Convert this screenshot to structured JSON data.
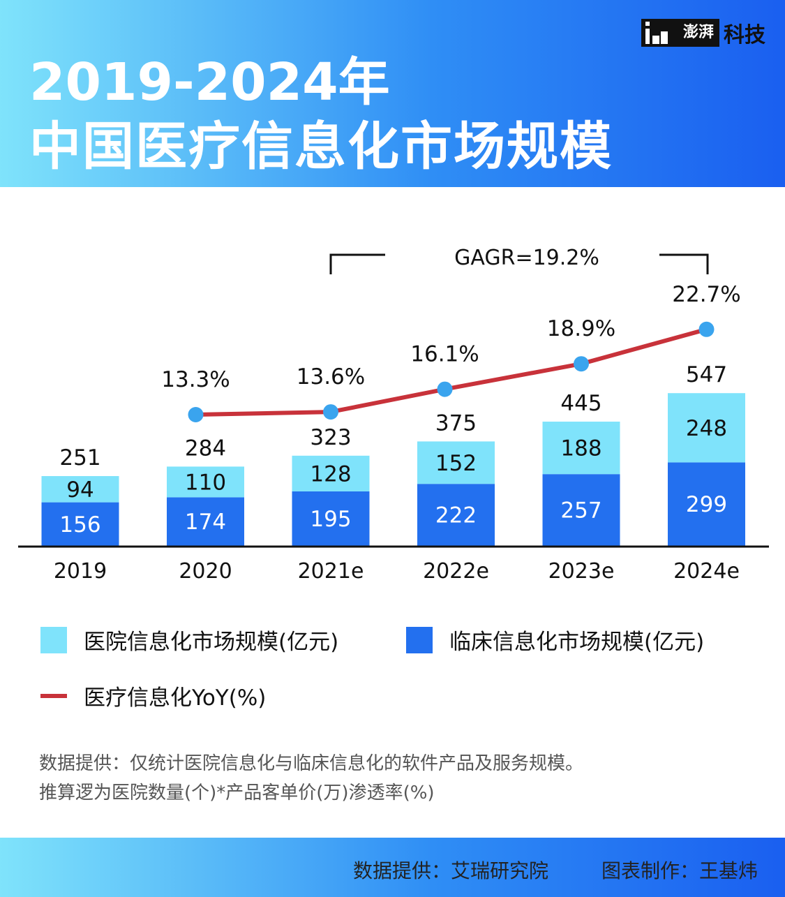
{
  "header": {
    "title_line1": "2019-2024年",
    "title_line2": "中国医疗信息化市场规模",
    "logo_box_text": "澎湃",
    "logo_text": "科技"
  },
  "chart_data": {
    "type": "bar",
    "categories": [
      "2019",
      "2020",
      "2021e",
      "2022e",
      "2023e",
      "2024e"
    ],
    "series": [
      {
        "name": "临床信息化市场规模(亿元)",
        "values": [
          156,
          174,
          195,
          222,
          257,
          299
        ]
      },
      {
        "name": "医院信息化市场规模(亿元)",
        "values": [
          94,
          110,
          128,
          152,
          188,
          248
        ]
      }
    ],
    "totals": [
      251,
      284,
      323,
      375,
      445,
      547
    ],
    "line_series": {
      "name": "医疗信息化YoY(%)",
      "categories": [
        "2020",
        "2021e",
        "2022e",
        "2023e",
        "2024e"
      ],
      "values": [
        13.3,
        13.6,
        16.1,
        18.9,
        22.7
      ],
      "labels": [
        "13.3%",
        "13.6%",
        "16.1%",
        "18.9%",
        "22.7%"
      ]
    },
    "annotation": "GAGR=19.2%",
    "stacked": true,
    "colors": {
      "clinical": "#2370ef",
      "hospital": "#7fe3fb",
      "yoy_line": "#c8323a",
      "yoy_point": "#3aa4ee"
    }
  },
  "legend": {
    "hospital_label": "医院信息化市场规模(亿元)",
    "clinical_label": "临床信息化市场规模(亿元)",
    "yoy_label": "医疗信息化YoY(%)"
  },
  "notes": {
    "line1": "数据提供：仅统计医院信息化与临床信息化的软件产品及服务规模。",
    "line2": "推算逻为医院数量(个)*产品客单价(万)渗透率(%)"
  },
  "footer": {
    "source": "数据提供：艾瑞研究院",
    "author": "图表制作：王基炜"
  }
}
